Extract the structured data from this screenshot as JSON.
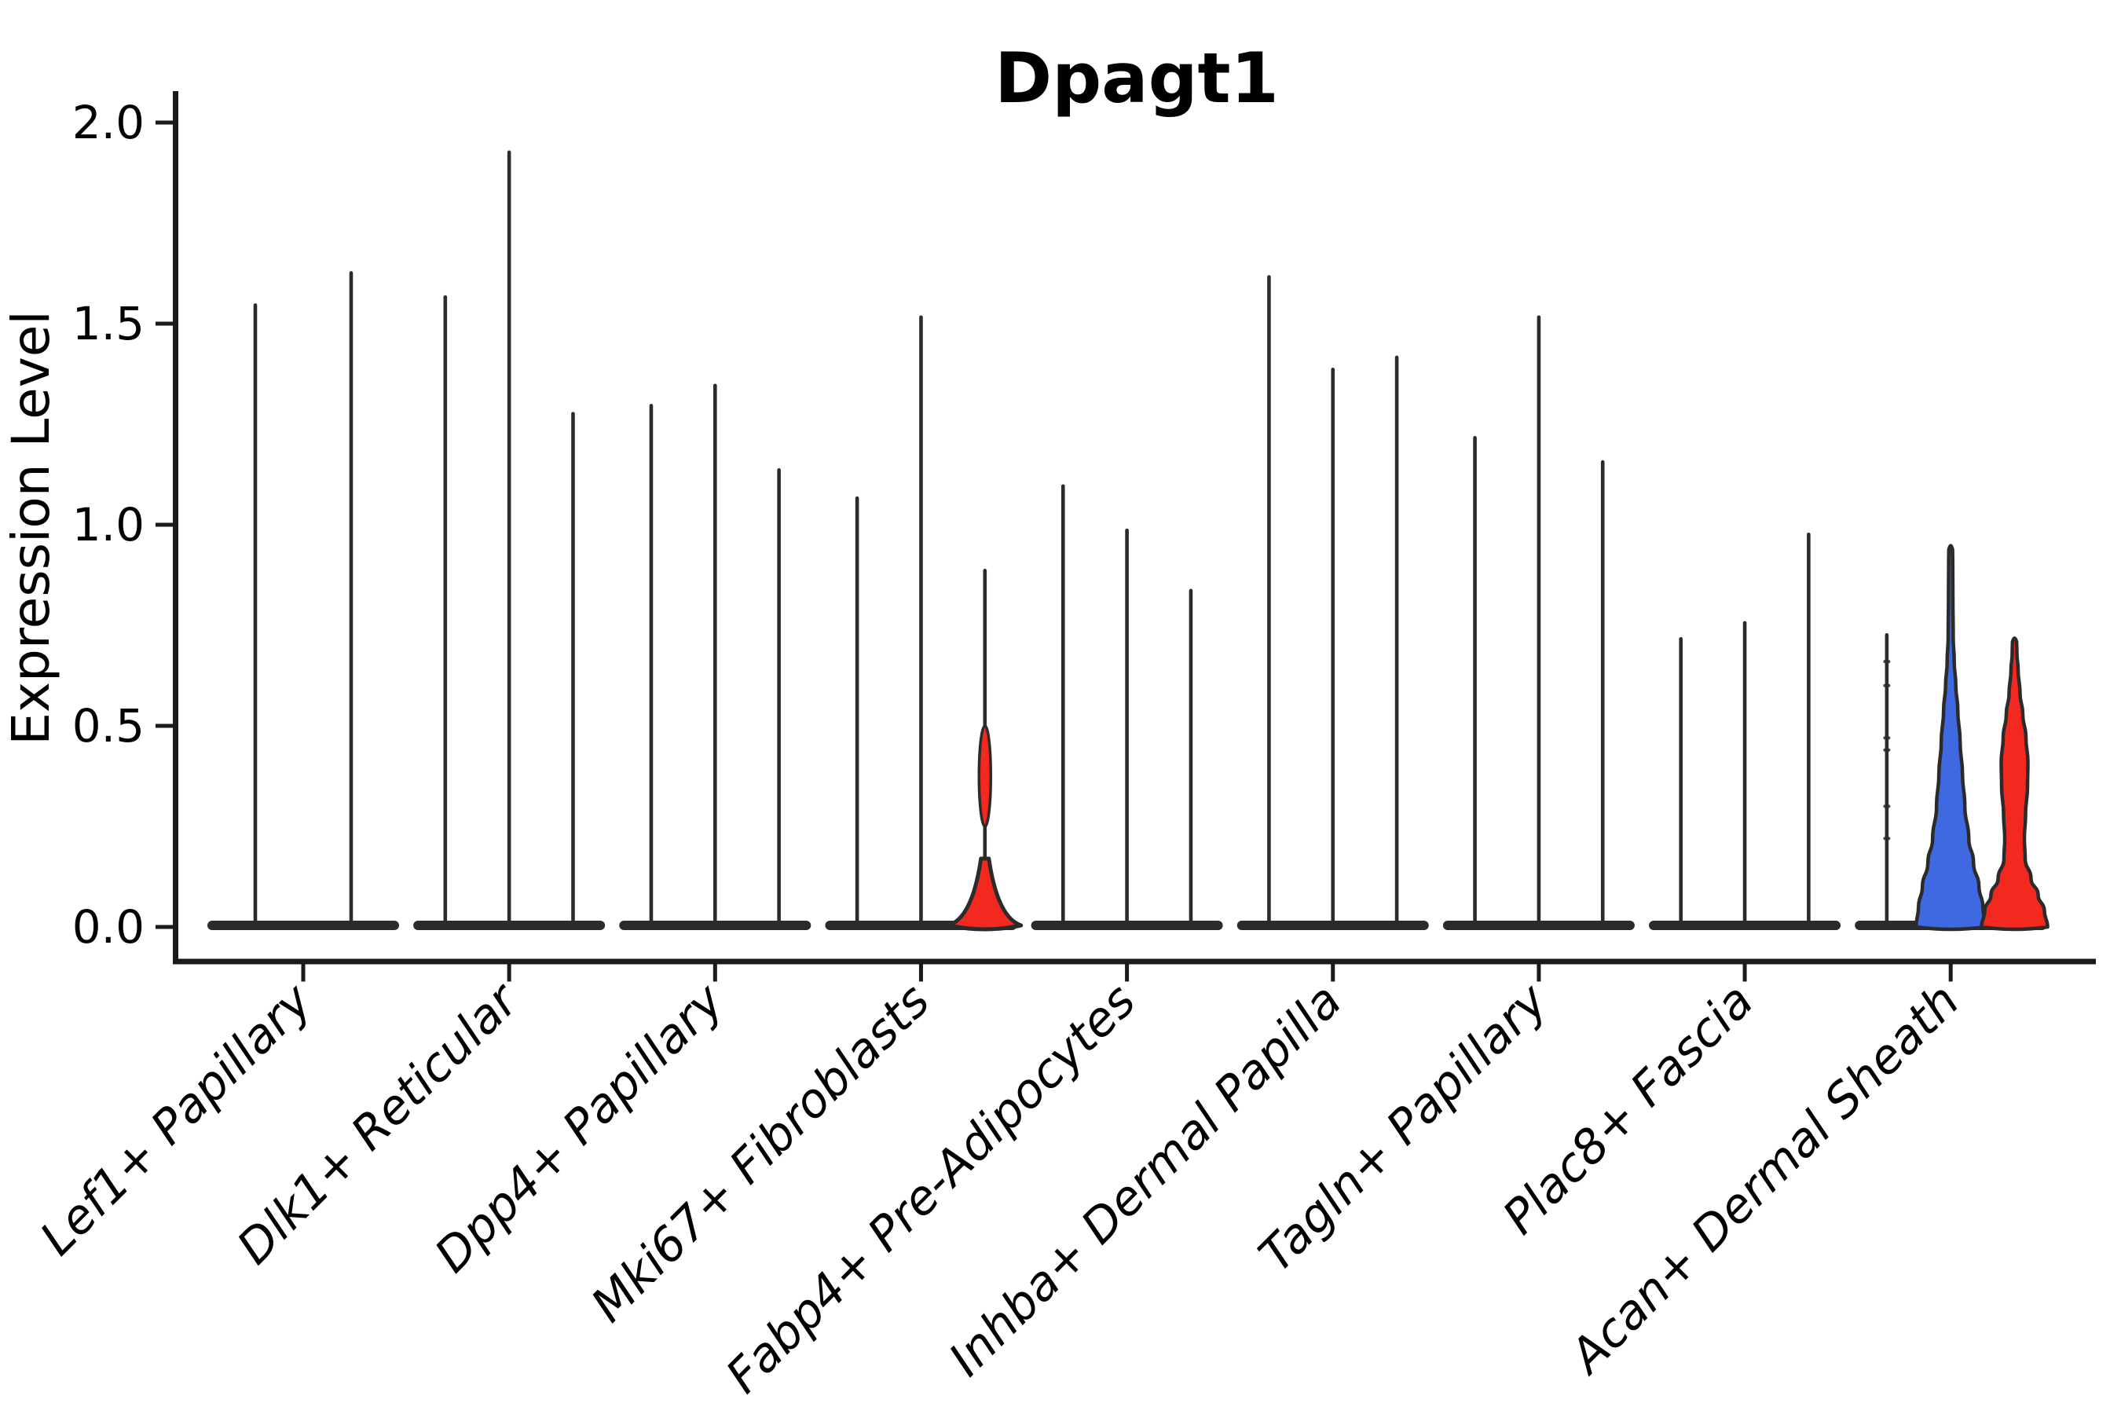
{
  "chart": {
    "title": "Dpagt1",
    "ylabel": "Expression Level"
  },
  "chart_data": {
    "type": "violin",
    "title": "Dpagt1",
    "subtitle": "",
    "xlabel": "",
    "ylabel": "Expression Level",
    "ylim": [
      0.0,
      2.0
    ],
    "yticks": [
      0.0,
      0.5,
      1.0,
      1.5,
      2.0
    ],
    "ytick_labels": [
      "0.0",
      "0.5",
      "1.0",
      "1.5",
      "2.0"
    ],
    "grid": false,
    "legend": "none",
    "categories": [
      "Lef1+ Papillary",
      "Dlk1+ Reticular",
      "Dpp4+ Papillary",
      "Mki67+ Fibroblasts",
      "Fabp4+ Pre-Adipocytes",
      "Inhba+ Dermal Papilla",
      "Tagln+ Papillary",
      "Plac8+ Fascia",
      "Acan+ Dermal Sheath"
    ],
    "colors": {
      "outline": "#2b2b2b",
      "axis": "#1a1a1a",
      "text": "#000000",
      "blue_fill": "#3e69e1",
      "red_fill": "#f3291f",
      "background": "#ffffff"
    },
    "groups": [
      {
        "label": "Lef1+ Papillary",
        "violins": [
          {
            "max": 1.55,
            "style": "stem"
          },
          {
            "max": 1.63,
            "style": "stem"
          }
        ]
      },
      {
        "label": "Dlk1+ Reticular",
        "violins": [
          {
            "max": 1.57,
            "style": "stem"
          },
          {
            "max": 1.93,
            "style": "stem"
          },
          {
            "max": 1.28,
            "style": "stem"
          }
        ]
      },
      {
        "label": "Dpp4+ Papillary",
        "violins": [
          {
            "max": 1.3,
            "style": "stem"
          },
          {
            "max": 1.35,
            "style": "stem"
          },
          {
            "max": 1.14,
            "style": "stem"
          }
        ]
      },
      {
        "label": "Mki67+ Fibroblasts",
        "violins": [
          {
            "max": 1.07,
            "style": "stem"
          },
          {
            "max": 1.52,
            "style": "stem"
          },
          {
            "max": 0.89,
            "style": "bulge",
            "fill": "red_fill",
            "base_half_width": 46,
            "base_top_value": 0.17,
            "lens_range": [
              0.25,
              0.5
            ],
            "lens_half_width": 7.5
          }
        ]
      },
      {
        "label": "Fabp4+ Pre-Adipocytes",
        "violins": [
          {
            "max": 1.1,
            "style": "stem"
          },
          {
            "max": 0.99,
            "style": "stem"
          },
          {
            "max": 0.84,
            "style": "stem"
          }
        ]
      },
      {
        "label": "Inhba+ Dermal Papilla",
        "violins": [
          {
            "max": 1.62,
            "style": "stem"
          },
          {
            "max": 1.39,
            "style": "stem"
          },
          {
            "max": 1.42,
            "style": "stem"
          }
        ]
      },
      {
        "label": "Tagln+ Papillary",
        "violins": [
          {
            "max": 1.22,
            "style": "stem"
          },
          {
            "max": 1.52,
            "style": "stem"
          },
          {
            "max": 1.16,
            "style": "stem"
          }
        ]
      },
      {
        "label": "Plac8+ Fascia",
        "violins": [
          {
            "max": 0.72,
            "style": "stem"
          },
          {
            "max": 0.76,
            "style": "stem"
          },
          {
            "max": 0.98,
            "style": "stem"
          }
        ]
      },
      {
        "label": "Acan+ Dermal Sheath",
        "violins": [
          {
            "max": 0.73,
            "style": "stem",
            "dots": [
              0.22,
              0.3,
              0.44,
              0.47,
              0.6,
              0.66
            ]
          },
          {
            "max": 0.95,
            "style": "wide",
            "fill": "blue_fill",
            "profile": [
              [
                0,
                44
              ],
              [
                0.05,
                41
              ],
              [
                0.1,
                36
              ],
              [
                0.16,
                29
              ],
              [
                0.22,
                23
              ],
              [
                0.3,
                18
              ],
              [
                0.38,
                15
              ],
              [
                0.46,
                12
              ],
              [
                0.54,
                9
              ],
              [
                0.6,
                6.5
              ],
              [
                0.66,
                4.5
              ],
              [
                0.72,
                3.2
              ],
              [
                0.82,
                2.8
              ],
              [
                0.9,
                2.6
              ]
            ]
          },
          {
            "max": 0.72,
            "style": "wide",
            "fill": "red_fill",
            "profile": [
              [
                0,
                42
              ],
              [
                0.04,
                38
              ],
              [
                0.08,
                30
              ],
              [
                0.12,
                21
              ],
              [
                0.17,
                13.5
              ],
              [
                0.22,
                12.5
              ],
              [
                0.28,
                14
              ],
              [
                0.35,
                16.5
              ],
              [
                0.41,
                17
              ],
              [
                0.47,
                14.5
              ],
              [
                0.53,
                10.5
              ],
              [
                0.58,
                7
              ],
              [
                0.64,
                4.5
              ],
              [
                0.68,
                3
              ]
            ]
          }
        ]
      }
    ]
  }
}
